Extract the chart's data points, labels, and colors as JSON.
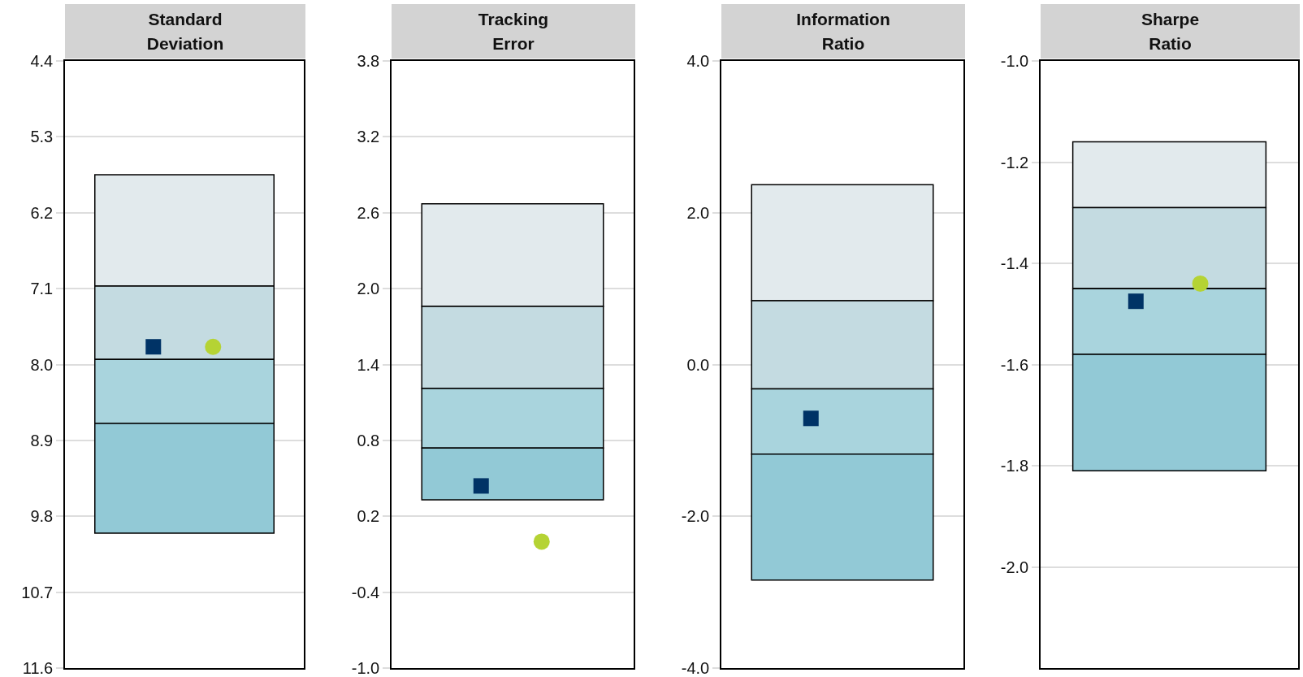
{
  "chart_data": [
    {
      "type": "bar",
      "title": "Standard\nDeviation",
      "categories": [
        null
      ],
      "ylim": [
        11.6,
        4.4
      ],
      "yticks": [
        4.4,
        5.3,
        6.2,
        7.1,
        {
          "value": 8,
          "label": "8.0"
        },
        8.9,
        9.8,
        10.7,
        11.6
      ],
      "grid": "y",
      "tick_labels": "y",
      "series": [
        {
          "color": "#e2eaed",
          "base": [
            5.75
          ],
          "values": [
            1.32
          ]
        },
        {
          "color": "#c4dbe1",
          "base": [
            7.07
          ],
          "values": [
            0.87
          ]
        },
        {
          "color": "#a9d4dd",
          "base": [
            7.94
          ],
          "values": [
            0.76
          ]
        },
        {
          "color": "#92c9d6",
          "base": [
            8.7
          ],
          "values": [
            1.3
          ]
        },
        {
          "type": "scatter",
          "marker": "square",
          "color": "#003366",
          "values": [
            7.79
          ]
        },
        {
          "type": "scatter",
          "marker": "circle",
          "color": "#b5d334",
          "values": [
            7.79
          ]
        }
      ]
    },
    {
      "type": "bar",
      "title": "Tracking\nError",
      "categories": [
        null
      ],
      "ylim": [
        -1.0,
        3.8
      ],
      "yticks": [
        {
          "value": -1,
          "label": "-1.0"
        },
        -0.4,
        0.2,
        0.8,
        1.4,
        {
          "value": 2,
          "label": "2.0"
        },
        2.6,
        3.2,
        3.8
      ],
      "grid": "y",
      "tick_labels": "y",
      "series": [
        {
          "color": "#e2eaed",
          "base": [
            1.86
          ],
          "values": [
            0.81
          ]
        },
        {
          "color": "#c4dbe1",
          "base": [
            1.21
          ],
          "values": [
            0.65
          ]
        },
        {
          "color": "#a9d4dd",
          "base": [
            0.74
          ],
          "values": [
            0.47
          ]
        },
        {
          "color": "#92c9d6",
          "base": [
            0.33
          ],
          "values": [
            0.41
          ]
        },
        {
          "type": "scatter",
          "marker": "square",
          "color": "#003366",
          "values": [
            0.44
          ]
        },
        {
          "type": "scatter",
          "marker": "circle",
          "color": "#b5d334",
          "values": [
            0.0
          ]
        }
      ]
    },
    {
      "type": "bar",
      "title": "Information\nRatio",
      "categories": [
        null
      ],
      "ylim": [
        -4.0,
        4.0
      ],
      "yticks": [
        {
          "value": -4,
          "label": "-4.0"
        },
        {
          "value": -2,
          "label": "-2.0"
        },
        {
          "value": 0,
          "label": "0.0"
        },
        {
          "value": 2,
          "label": "2.0"
        },
        {
          "value": 4,
          "label": "4.0"
        }
      ],
      "grid": "y",
      "tick_labels": "y",
      "series": [
        {
          "color": "#e2eaed",
          "base": [
            0.84
          ],
          "values": [
            1.53
          ]
        },
        {
          "color": "#c4dbe1",
          "base": [
            -0.32
          ],
          "values": [
            1.16
          ]
        },
        {
          "color": "#a9d4dd",
          "base": [
            -1.18
          ],
          "values": [
            0.86
          ]
        },
        {
          "color": "#92c9d6",
          "base": [
            -2.84
          ],
          "values": [
            1.66
          ]
        },
        {
          "type": "scatter",
          "marker": "square",
          "color": "#003366",
          "values": [
            -0.71
          ]
        }
      ]
    },
    {
      "type": "bar",
      "title": "Sharpe\nRatio",
      "categories": [
        null
      ],
      "ylim": [
        -2.2,
        -1.0
      ],
      "yticks": [
        {
          "value": -2,
          "label": "-2.0"
        },
        -1.8,
        -1.6,
        -1.4,
        -1.2,
        {
          "value": -1,
          "label": "-1.0"
        }
      ],
      "grid": "y",
      "tick_labels": "y",
      "series": [
        {
          "color": "#e2eaed",
          "base": [
            -1.29
          ],
          "values": [
            0.13
          ]
        },
        {
          "color": "#c4dbe1",
          "base": [
            -1.45
          ],
          "values": [
            0.16
          ]
        },
        {
          "color": "#a9d4dd",
          "base": [
            -1.58
          ],
          "values": [
            0.13
          ]
        },
        {
          "color": "#92c9d6",
          "base": [
            -1.81
          ],
          "values": [
            0.23
          ]
        },
        {
          "type": "scatter",
          "marker": "square",
          "color": "#003366",
          "values": [
            -1.475
          ]
        },
        {
          "type": "scatter",
          "marker": "circle",
          "color": "#b5d334",
          "values": [
            -1.44
          ]
        }
      ]
    }
  ]
}
